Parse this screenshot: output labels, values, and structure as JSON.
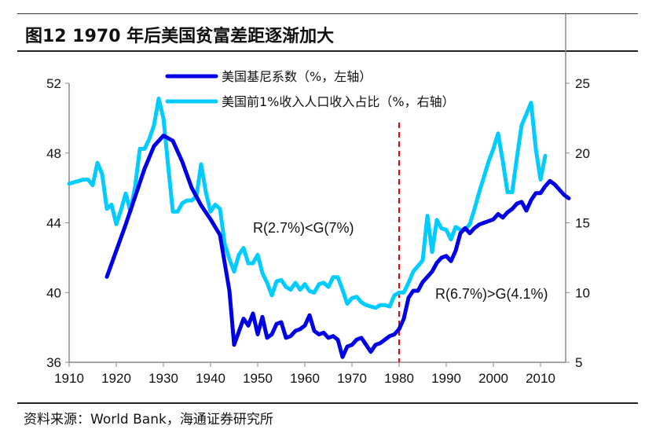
{
  "title": "图12 1970 年后美国贫富差距逐渐加大",
  "source": "资料来源：World Bank，海通证券研究所",
  "chart_data": {
    "type": "line",
    "title": "图12 1970 年后美国贫富差距逐渐加大",
    "xlim": [
      1910,
      2016
    ],
    "x_ticks": [
      1910,
      1920,
      1930,
      1940,
      1950,
      1960,
      1970,
      1980,
      1990,
      2000,
      2010
    ],
    "y_left": {
      "ylim": [
        36,
        52
      ],
      "ticks": [
        36,
        40,
        44,
        48,
        52
      ]
    },
    "y_right": {
      "ylim": [
        5,
        25
      ],
      "ticks": [
        5,
        10,
        15,
        20,
        25
      ]
    },
    "grid": false,
    "legend": "top-center",
    "colors": {
      "gini": "#0000e6",
      "top1": "#00ccff",
      "divider": "#ff0000"
    },
    "vertical_marker_year": 1980,
    "annotations": [
      "R(2.7%)<G(7%)",
      "R(6.7%)>G(4.1%)"
    ],
    "series": [
      {
        "name": "美国基尼系数（%，左轴）",
        "axis": "left",
        "x": [
          1918,
          1920,
          1922,
          1924,
          1926,
          1928,
          1930,
          1932,
          1934,
          1936,
          1938,
          1940,
          1942,
          1944,
          1945,
          1947,
          1948,
          1949,
          1950,
          1951,
          1952,
          1953,
          1954,
          1955,
          1956,
          1957,
          1958,
          1959,
          1960,
          1961,
          1962,
          1963,
          1964,
          1965,
          1966,
          1967,
          1968,
          1969,
          1970,
          1971,
          1972,
          1973,
          1974,
          1975,
          1976,
          1977,
          1978,
          1979,
          1980,
          1981,
          1982,
          1983,
          1984,
          1985,
          1986,
          1987,
          1988,
          1989,
          1990,
          1991,
          1992,
          1993,
          1994,
          1995,
          1996,
          1997,
          1998,
          1999,
          2000,
          2001,
          2002,
          2003,
          2004,
          2005,
          2006,
          2007,
          2008,
          2009,
          2010,
          2011,
          2012,
          2013,
          2014,
          2015,
          2016
        ],
        "values": [
          40.9,
          42.4,
          43.9,
          45.5,
          47.1,
          48.4,
          49.0,
          48.7,
          47.5,
          46.0,
          45.0,
          44.2,
          43.3,
          40.1,
          37.0,
          38.5,
          38.1,
          38.8,
          37.6,
          38.6,
          37.4,
          37.6,
          38.2,
          38.3,
          37.4,
          37.5,
          37.8,
          37.9,
          38.1,
          38.7,
          37.8,
          37.6,
          37.7,
          37.4,
          37.5,
          37.3,
          36.3,
          36.9,
          37.0,
          37.3,
          37.4,
          37.0,
          36.6,
          37.0,
          37.1,
          37.3,
          37.5,
          37.6,
          37.9,
          38.5,
          39.7,
          40.1,
          40.1,
          40.6,
          40.9,
          41.2,
          41.7,
          42.0,
          42.1,
          41.8,
          42.4,
          43.4,
          43.7,
          43.4,
          43.7,
          43.9,
          44.0,
          44.1,
          44.2,
          44.5,
          44.3,
          44.6,
          44.8,
          45.1,
          45.2,
          44.7,
          45.3,
          45.7,
          45.7,
          46.1,
          46.4,
          46.2,
          45.9,
          45.6,
          45.4
        ]
      },
      {
        "name": "美国前1%收入人口收入占比（%，右轴）",
        "axis": "right",
        "x": [
          1910,
          1911,
          1912,
          1913,
          1914,
          1915,
          1916,
          1917,
          1918,
          1919,
          1920,
          1921,
          1922,
          1923,
          1924,
          1925,
          1926,
          1927,
          1928,
          1929,
          1930,
          1931,
          1932,
          1933,
          1934,
          1935,
          1936,
          1937,
          1938,
          1939,
          1940,
          1941,
          1942,
          1943,
          1944,
          1945,
          1946,
          1947,
          1948,
          1949,
          1950,
          1951,
          1952,
          1953,
          1954,
          1955,
          1956,
          1957,
          1958,
          1959,
          1960,
          1961,
          1962,
          1963,
          1964,
          1965,
          1966,
          1967,
          1968,
          1969,
          1970,
          1971,
          1972,
          1973,
          1974,
          1975,
          1976,
          1977,
          1978,
          1979,
          1980,
          1981,
          1982,
          1983,
          1984,
          1985,
          1986,
          1987,
          1988,
          1989,
          1990,
          1991,
          1992,
          1993,
          1994,
          1995,
          1996,
          1997,
          1998,
          1999,
          2000,
          2001,
          2002,
          2003,
          2004,
          2005,
          2006,
          2007,
          2008,
          2009,
          2010,
          2011
        ],
        "values": [
          17.8,
          17.9,
          18.0,
          18.1,
          18.1,
          17.7,
          19.3,
          18.5,
          16.0,
          16.3,
          14.9,
          15.9,
          17.1,
          15.8,
          17.6,
          20.3,
          20.3,
          21.0,
          22.0,
          23.9,
          22.5,
          19.1,
          15.8,
          15.8,
          16.4,
          16.6,
          16.6,
          16.9,
          19.2,
          17.2,
          15.8,
          16.3,
          16.0,
          13.5,
          12.4,
          11.5,
          12.7,
          13.2,
          12.1,
          12.1,
          12.7,
          11.4,
          10.7,
          9.8,
          10.8,
          10.9,
          10.4,
          10.2,
          10.7,
          10.2,
          10.6,
          10.1,
          10.0,
          10.6,
          10.7,
          10.4,
          11.1,
          11.1,
          10.2,
          9.2,
          9.6,
          9.7,
          9.3,
          9.1,
          9.0,
          8.9,
          9.1,
          9.1,
          9.0,
          9.8,
          10.0,
          10.0,
          10.7,
          11.5,
          11.9,
          12.3,
          15.5,
          12.9,
          15.2,
          14.6,
          14.5,
          13.8,
          14.7,
          14.5,
          14.5,
          14.9,
          16.0,
          17.2,
          18.3,
          19.4,
          20.3,
          21.4,
          19.4,
          17.2,
          17.2,
          19.7,
          22.0,
          22.8,
          23.6,
          20.3,
          18.1,
          19.8
        ]
      }
    ]
  }
}
